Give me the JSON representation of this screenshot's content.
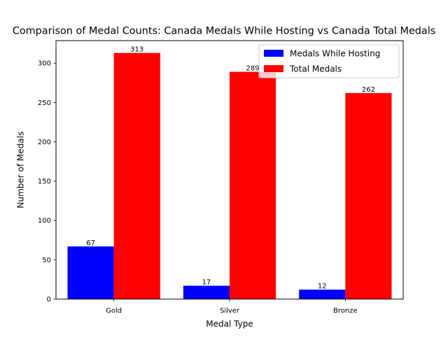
{
  "chart_data": {
    "type": "bar",
    "title": "Comparison of Medal Counts: Canada Medals While Hosting vs Canada Total Medals",
    "xlabel": "Medal Type",
    "ylabel": "Number of Medals",
    "categories": [
      "Gold",
      "Silver",
      "Bronze"
    ],
    "series": [
      {
        "name": "Medals While Hosting",
        "color": "#0000ff",
        "values": [
          67,
          17,
          12
        ]
      },
      {
        "name": "Total Medals",
        "color": "#ff0000",
        "values": [
          313,
          289,
          262
        ]
      }
    ],
    "ylim": [
      0,
      328.65
    ],
    "yticks": [
      0,
      50,
      100,
      150,
      200,
      250,
      300
    ],
    "grid": false,
    "legend_position": "top-right"
  }
}
